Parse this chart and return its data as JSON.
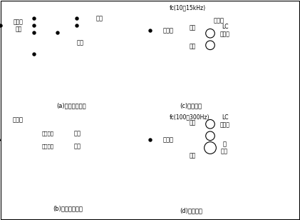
{
  "bg_color": "#ffffff",
  "line_color": "#000000",
  "labels": {
    "quanpinjun": "全频管\n功放",
    "gaoyin_a": "高音",
    "diyin_a": "低音",
    "caption_a": "(a)后级功率分频",
    "fenpinji_b": "分频器",
    "gaoyin_gongfang_b": "高音功放",
    "diyin_gongfang_b": "低音功放",
    "gaoyin_b": "高音",
    "diyin_b": "低音",
    "caption_b": "(b)前级电子分频",
    "fc_c": "fc(10～15kHz)",
    "gongjiao_c1": "功放",
    "gongjiao_c2": "功放",
    "chaogaoyin_c": "超高音",
    "lc_c": "LC\n二分频",
    "caption_c": "(c)加超高音",
    "fc_d": "fc(100～300Hz)",
    "gongjiao_d1": "功放",
    "gongjiao_d2": "功放",
    "chaodiyin_d": "超\n低音",
    "lc_d": "LC\n二分频",
    "caption_d": "(d)加超低音",
    "fenpinji_c": "分频器",
    "fenpinji_d": "分频器"
  }
}
